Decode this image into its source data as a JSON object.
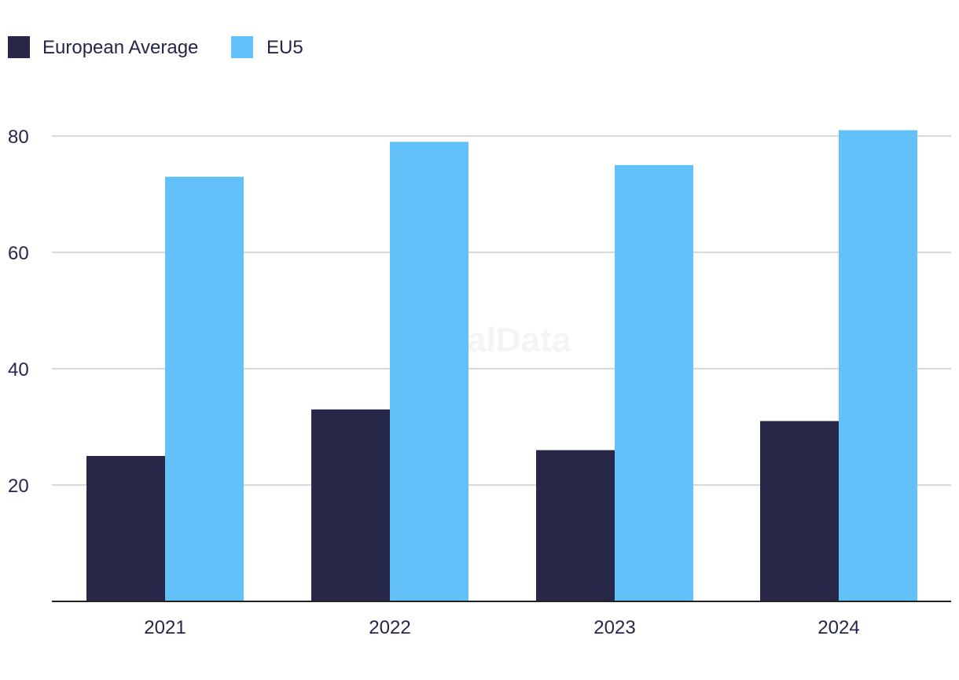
{
  "colors": {
    "european_average": "#272848",
    "eu5": "#63c1f9",
    "grid": "#d9d9d9",
    "axis": "#222222",
    "text": "#26264a",
    "watermark": "#f4f4f4"
  },
  "watermark": "GlobalData",
  "chart_data": {
    "type": "bar",
    "title": "",
    "xlabel": "",
    "ylabel": "",
    "categories": [
      "2021",
      "2022",
      "2023",
      "2024"
    ],
    "series": [
      {
        "name": "European Average",
        "values": [
          25,
          33,
          26,
          31
        ]
      },
      {
        "name": "EU5",
        "values": [
          73,
          79,
          75,
          81
        ]
      }
    ],
    "ylim": [
      0,
      80
    ],
    "yticks": [
      20,
      40,
      60,
      80
    ],
    "ytick_labels": [
      "20",
      "40",
      "60",
      "80"
    ],
    "grid": true,
    "legend_position": "top-left"
  }
}
